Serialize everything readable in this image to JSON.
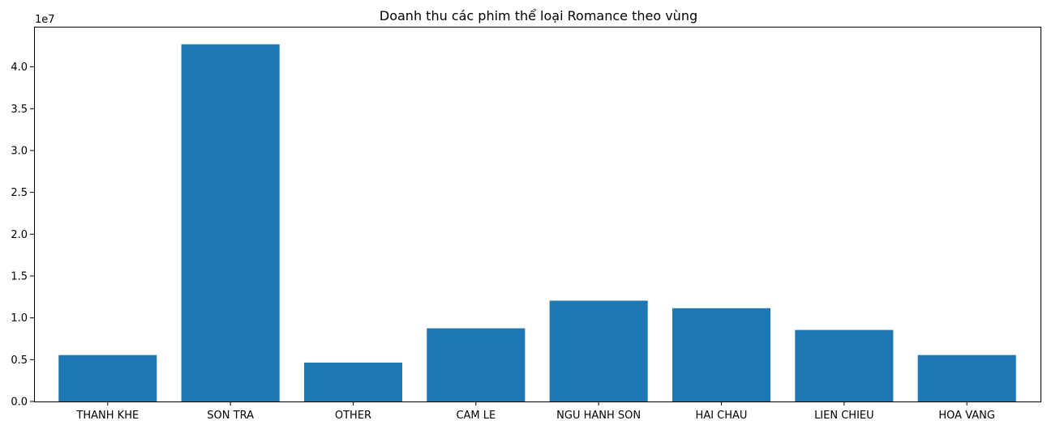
{
  "chart_data": {
    "type": "bar",
    "title": "Doanh thu các phim thể loại Romance theo vùng",
    "xlabel": "",
    "ylabel": "",
    "y_offset_label": "1e7",
    "categories": [
      "THANH KHE",
      "SON TRA",
      "OTHER",
      "CAM LE",
      "NGU HANH SON",
      "HAI CHAU",
      "LIEN CHIEU",
      "HOA VANG"
    ],
    "values": [
      5550000,
      42700000,
      4650000,
      8750000,
      12050000,
      11150000,
      8550000,
      5550000
    ],
    "ylim": [
      0,
      44800000
    ],
    "y_ticks": [
      0,
      5000000,
      10000000,
      15000000,
      20000000,
      25000000,
      30000000,
      35000000,
      40000000
    ],
    "y_tick_labels": [
      "0.0",
      "0.5",
      "1.0",
      "1.5",
      "2.0",
      "2.5",
      "3.0",
      "3.5",
      "4.0"
    ],
    "bar_color": "#1f77b4",
    "grid": false,
    "legend": "none"
  }
}
